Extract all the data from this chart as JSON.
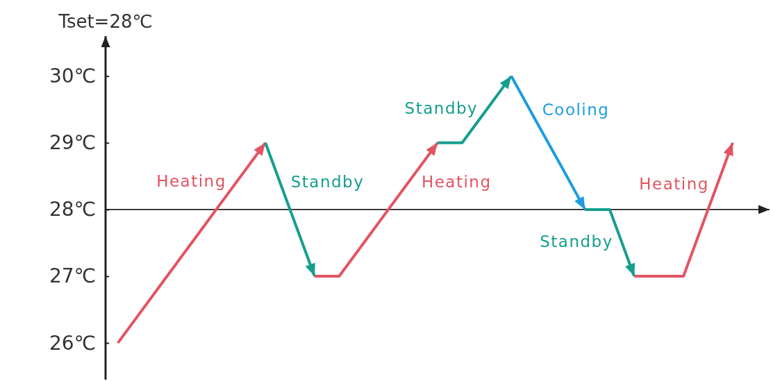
{
  "chart_data": {
    "type": "line",
    "ylabel": "Tset=28℃",
    "categories": [
      null,
      null,
      null,
      null,
      null,
      null,
      null,
      null,
      null,
      null,
      null,
      null,
      null,
      null,
      null,
      null,
      null,
      null,
      null,
      null,
      null,
      null,
      null,
      null,
      null,
      null,
      null
    ],
    "ylim": [
      25.45,
      30.6
    ],
    "yticks": [
      {
        "value": 26,
        "label": "26℃"
      },
      {
        "value": 27,
        "label": "27℃"
      },
      {
        "value": 28,
        "label": "28℃"
      },
      {
        "value": 29,
        "label": "29℃"
      },
      {
        "value": 30,
        "label": "30℃"
      }
    ],
    "ref_lines": [
      {
        "axis": "y",
        "value": 28
      }
    ],
    "series": [
      {
        "name": "Heating",
        "color": "#e25462",
        "values": [
          26,
          26.5,
          27,
          27.5,
          28,
          28.5,
          29,
          null,
          null,
          null,
          null,
          null,
          null,
          null,
          null,
          null,
          null,
          null,
          null,
          null,
          null,
          null,
          null,
          null,
          null,
          null,
          null
        ]
      },
      {
        "name": "Standby",
        "color": "#159e8e",
        "values": [
          null,
          null,
          null,
          null,
          null,
          null,
          29,
          28,
          27,
          null,
          null,
          null,
          null,
          null,
          null,
          null,
          null,
          null,
          null,
          null,
          null,
          null,
          null,
          null,
          null,
          null,
          null
        ]
      },
      {
        "name": "Heating",
        "color": "#e25462",
        "values": [
          null,
          null,
          null,
          null,
          null,
          null,
          null,
          null,
          27,
          27,
          27.5,
          28,
          28.5,
          29,
          null,
          null,
          null,
          null,
          null,
          null,
          null,
          null,
          null,
          null,
          null,
          null,
          null
        ]
      },
      {
        "name": "Standby",
        "color": "#159e8e",
        "values": [
          null,
          null,
          null,
          null,
          null,
          null,
          null,
          null,
          null,
          null,
          null,
          null,
          null,
          29,
          29,
          29.5,
          30,
          null,
          null,
          null,
          null,
          null,
          null,
          null,
          null,
          null,
          null
        ]
      },
      {
        "name": "Cooling",
        "color": "#1d9de0",
        "values": [
          null,
          null,
          null,
          null,
          null,
          null,
          null,
          null,
          null,
          null,
          null,
          null,
          null,
          null,
          null,
          null,
          30,
          29.33,
          28.67,
          28,
          null,
          null,
          null,
          null,
          null,
          null,
          null
        ]
      },
      {
        "name": "Standby",
        "color": "#159e8e",
        "values": [
          null,
          null,
          null,
          null,
          null,
          null,
          null,
          null,
          null,
          null,
          null,
          null,
          null,
          null,
          null,
          null,
          null,
          null,
          null,
          28,
          28,
          27,
          null,
          null,
          null,
          null,
          null
        ]
      },
      {
        "name": "Heating",
        "color": "#e25462",
        "values": [
          null,
          null,
          null,
          null,
          null,
          null,
          null,
          null,
          null,
          null,
          null,
          null,
          null,
          null,
          null,
          null,
          null,
          null,
          null,
          null,
          null,
          27,
          27,
          27,
          28,
          29,
          null
        ]
      }
    ]
  }
}
